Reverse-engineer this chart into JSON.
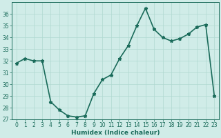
{
  "x": [
    0,
    1,
    2,
    3,
    4,
    5,
    6,
    7,
    8,
    9,
    10,
    11,
    12,
    13,
    14,
    15,
    16,
    17,
    18,
    19,
    20,
    21,
    22,
    23
  ],
  "y": [
    31.8,
    32.2,
    32.0,
    32.0,
    28.5,
    27.8,
    27.3,
    27.2,
    27.3,
    29.2,
    30.4,
    30.8,
    32.2,
    33.3,
    35.0,
    36.5,
    34.7,
    34.0,
    33.7,
    33.9,
    34.3,
    34.9,
    35.1,
    29.0
  ],
  "line_color": "#1a6b5a",
  "marker": "*",
  "marker_size": 3.5,
  "xlabel": "Humidex (Indice chaleur)",
  "xlim": [
    -0.5,
    23.5
  ],
  "ylim": [
    27,
    37
  ],
  "yticks": [
    27,
    28,
    29,
    30,
    31,
    32,
    33,
    34,
    35,
    36
  ],
  "xticks": [
    0,
    1,
    2,
    3,
    4,
    5,
    6,
    7,
    8,
    9,
    10,
    11,
    12,
    13,
    14,
    15,
    16,
    17,
    18,
    19,
    20,
    21,
    22,
    23
  ],
  "bg_color": "#d0ece8",
  "grid_color": "#b0d8d0",
  "line_width": 1.2,
  "tick_fontsize": 5.5,
  "xlabel_fontsize": 6.5
}
